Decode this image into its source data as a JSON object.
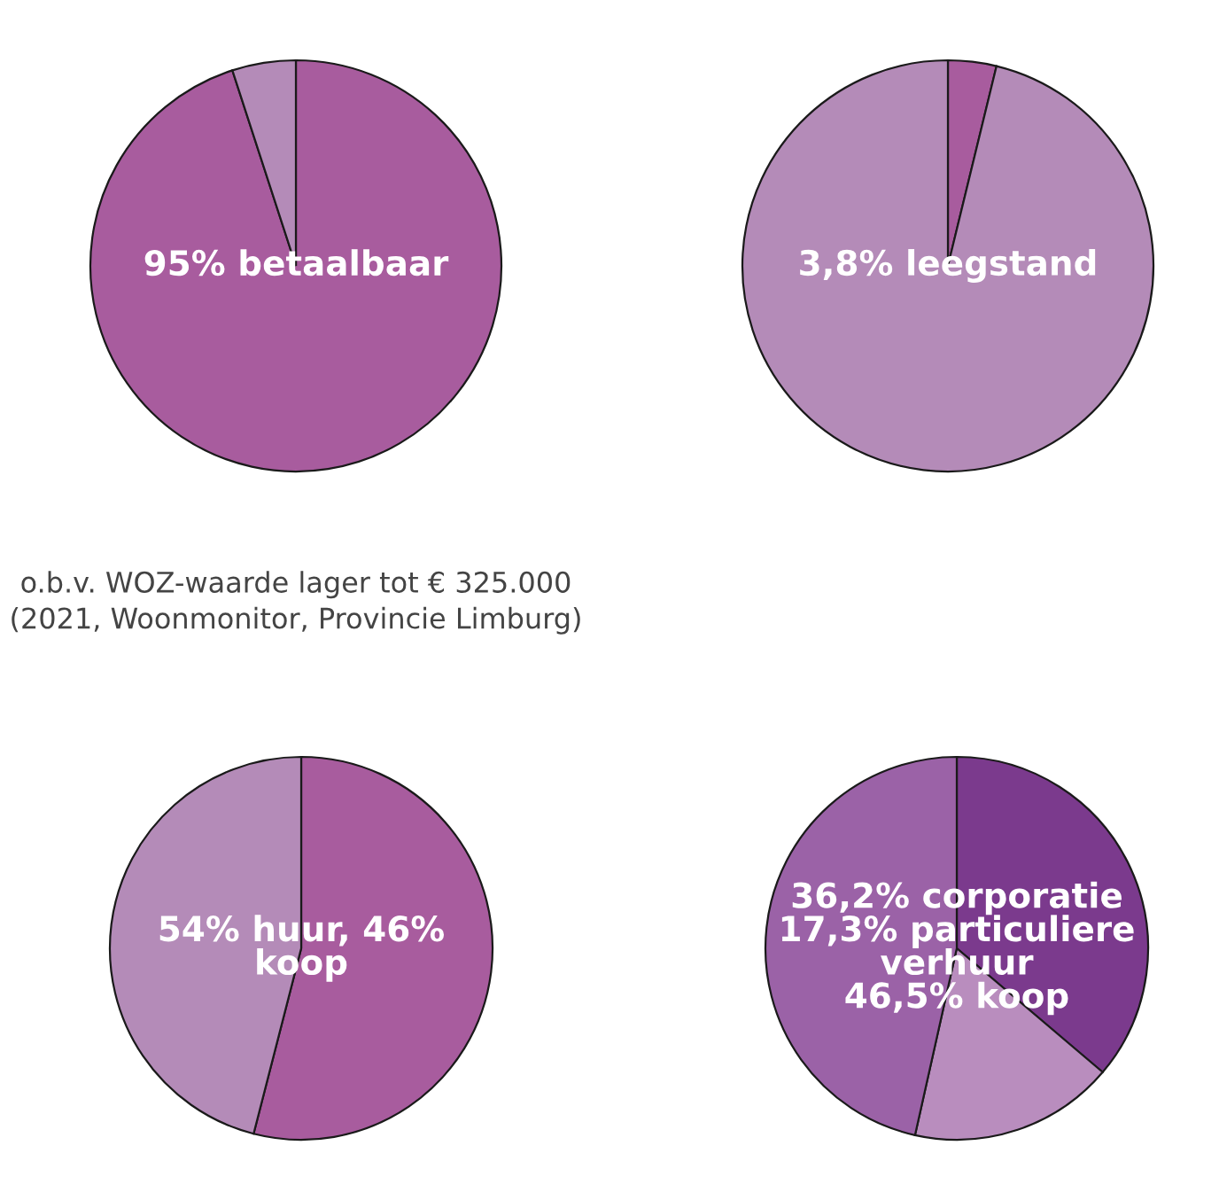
{
  "chart_data": [
    {
      "type": "pie",
      "categories": [
        null,
        null
      ],
      "values": [
        95,
        5
      ],
      "colors": [
        "#a85c9e",
        "#b48bb8"
      ],
      "annotations": [
        "95% betaalbaar",
        "o.b.v. WOZ-waarde lager tot € 325.000 (2021, Woonmonitor, Provincie Limburg)"
      ]
    },
    {
      "type": "pie",
      "categories": [
        null,
        null
      ],
      "values": [
        3.8,
        96.2
      ],
      "colors": [
        "#a85c9e",
        "#b48bb8"
      ],
      "annotations": [
        "3,8% leegstand"
      ]
    },
    {
      "type": "pie",
      "categories": [
        null,
        null
      ],
      "values": [
        54,
        46
      ],
      "colors": [
        "#a85c9e",
        "#b48bb8"
      ],
      "annotations": [
        "54% huur, 46%\nkoop"
      ]
    },
    {
      "type": "pie",
      "categories": [
        null,
        null,
        null
      ],
      "values": [
        36.2,
        17.3,
        46.5
      ],
      "colors": [
        "#7b3a8d",
        "#b98dbe",
        "#9b62a7"
      ],
      "annotations": [
        "36,2% corporatie\n17,3% particuliere\nverhuur\n46,5% koop"
      ]
    }
  ]
}
